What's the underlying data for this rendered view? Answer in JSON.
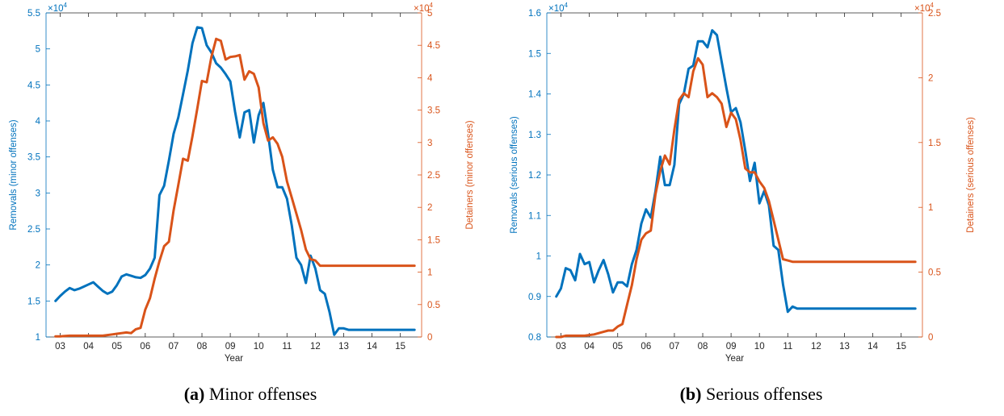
{
  "figures": [
    {
      "caption_tag": "(a)",
      "caption_text": "Minor offenses"
    },
    {
      "caption_tag": "(b)",
      "caption_text": "Serious offenses"
    }
  ],
  "colors": {
    "removals": "#0072BD",
    "detainers": "#D95319"
  },
  "chart_data": [
    {
      "type": "line",
      "xlabel": "Year",
      "ylabel_left": "Removals (minor offenses)",
      "ylabel_right": "Detainers (minor offenses)",
      "exponent_left": "×10",
      "exponent_right": "×10",
      "exponent_power": "4",
      "x_ticks": [
        3,
        4,
        5,
        6,
        7,
        8,
        9,
        10,
        11,
        12,
        13,
        14,
        15
      ],
      "x_tick_labels": [
        "03",
        "04",
        "05",
        "06",
        "07",
        "08",
        "09",
        "10",
        "11",
        "12",
        "13",
        "14",
        "15"
      ],
      "xlim": [
        2.5,
        15.75
      ],
      "ylim_left": [
        1,
        5.5
      ],
      "ylim_right": [
        0,
        5
      ],
      "y_ticks_left": [
        1,
        1.5,
        2,
        2.5,
        3,
        3.5,
        4,
        4.5,
        5,
        5.5
      ],
      "y_tick_labels_left": [
        "1",
        "1.5",
        "2",
        "2.5",
        "3",
        "3.5",
        "4",
        "4.5",
        "5",
        "5.5"
      ],
      "y_ticks_right": [
        0,
        0.5,
        1,
        1.5,
        2,
        2.5,
        3,
        3.5,
        4,
        4.5,
        5
      ],
      "y_tick_labels_right": [
        "0",
        "0.5",
        "1",
        "1.5",
        "2",
        "2.5",
        "3",
        "3.5",
        "4",
        "4.5",
        "5"
      ],
      "x": [
        2.833,
        3.0,
        3.167,
        3.333,
        3.5,
        3.667,
        3.833,
        4.0,
        4.167,
        4.333,
        4.5,
        4.667,
        4.833,
        5.0,
        5.167,
        5.333,
        5.5,
        5.667,
        5.833,
        6.0,
        6.167,
        6.333,
        6.5,
        6.667,
        6.833,
        7.0,
        7.167,
        7.333,
        7.5,
        7.667,
        7.833,
        8.0,
        8.167,
        8.333,
        8.5,
        8.667,
        8.833,
        9.0,
        9.167,
        9.333,
        9.5,
        9.667,
        9.833,
        10.0,
        10.167,
        10.333,
        10.5,
        10.667,
        10.833,
        11.0,
        11.167,
        11.333,
        11.5,
        11.667,
        11.833,
        12.0,
        12.167,
        12.333,
        12.5,
        12.667,
        12.833,
        13.0,
        13.167,
        13.333,
        13.5,
        13.667,
        13.833,
        14.0,
        14.167,
        14.333,
        14.5,
        14.667,
        14.833,
        15.0,
        15.167,
        15.333,
        15.5
      ],
      "series": [
        {
          "axis": "left",
          "values": [
            1.5,
            1.57,
            1.63,
            1.68,
            1.65,
            1.67,
            1.7,
            1.73,
            1.76,
            1.7,
            1.64,
            1.6,
            1.63,
            1.72,
            1.84,
            1.87,
            1.85,
            1.83,
            1.82,
            1.86,
            1.95,
            2.1,
            2.97,
            3.1,
            3.45,
            3.82,
            4.05,
            4.37,
            4.7,
            5.08,
            5.3,
            5.29,
            5.05,
            4.95,
            4.8,
            4.74,
            4.65,
            4.55,
            4.13,
            3.77,
            4.12,
            4.15,
            3.7,
            4.08,
            4.25,
            3.82,
            3.32,
            3.08,
            3.08,
            2.92,
            2.55,
            2.1,
            2.0,
            1.75,
            2.13,
            1.95,
            1.65,
            1.6,
            1.35,
            1.03,
            1.12,
            1.12,
            1.1,
            1.1,
            1.1,
            1.1,
            1.1,
            1.1,
            1.1,
            1.1,
            1.1,
            1.1,
            1.1,
            1.1,
            1.1,
            1.1,
            1.1
          ]
        },
        {
          "axis": "right",
          "values": [
            0.01,
            0.01,
            0.015,
            0.02,
            0.02,
            0.02,
            0.02,
            0.02,
            0.02,
            0.02,
            0.02,
            0.03,
            0.04,
            0.05,
            0.06,
            0.07,
            0.06,
            0.12,
            0.14,
            0.42,
            0.6,
            0.9,
            1.17,
            1.4,
            1.47,
            1.95,
            2.35,
            2.75,
            2.72,
            3.1,
            3.52,
            3.95,
            3.93,
            4.32,
            4.6,
            4.57,
            4.28,
            4.32,
            4.33,
            4.35,
            3.97,
            4.1,
            4.06,
            3.85,
            3.3,
            3.03,
            3.08,
            2.98,
            2.78,
            2.4,
            2.15,
            1.9,
            1.65,
            1.35,
            1.2,
            1.18,
            1.1,
            1.1,
            1.1,
            1.1,
            1.1,
            1.1,
            1.1,
            1.1,
            1.1,
            1.1,
            1.1,
            1.1,
            1.1,
            1.1,
            1.1,
            1.1,
            1.1,
            1.1,
            1.1,
            1.1,
            1.1
          ]
        }
      ]
    },
    {
      "type": "line",
      "xlabel": "Year",
      "ylabel_left": "Removals (serious offenses)",
      "ylabel_right": "Detainers (serious offenses)",
      "exponent_left": "×10",
      "exponent_right": "×10",
      "exponent_power": "4",
      "x_ticks": [
        3,
        4,
        5,
        6,
        7,
        8,
        9,
        10,
        11,
        12,
        13,
        14,
        15
      ],
      "x_tick_labels": [
        "03",
        "04",
        "05",
        "06",
        "07",
        "08",
        "09",
        "10",
        "11",
        "12",
        "13",
        "14",
        "15"
      ],
      "xlim": [
        2.5,
        15.75
      ],
      "ylim_left": [
        0.8,
        1.6
      ],
      "ylim_right": [
        0,
        2.5
      ],
      "y_ticks_left": [
        0.8,
        0.9,
        1.0,
        1.1,
        1.2,
        1.3,
        1.4,
        1.5,
        1.6
      ],
      "y_tick_labels_left": [
        "0.8",
        "0.9",
        "1",
        "1.1",
        "1.2",
        "1.3",
        "1.4",
        "1.5",
        "1.6"
      ],
      "y_ticks_right": [
        0,
        0.5,
        1,
        1.5,
        2,
        2.5
      ],
      "y_tick_labels_right": [
        "0",
        "0.5",
        "1",
        "1.5",
        "2",
        "2.5"
      ],
      "x": [
        2.833,
        3.0,
        3.167,
        3.333,
        3.5,
        3.667,
        3.833,
        4.0,
        4.167,
        4.333,
        4.5,
        4.667,
        4.833,
        5.0,
        5.167,
        5.333,
        5.5,
        5.667,
        5.833,
        6.0,
        6.167,
        6.333,
        6.5,
        6.667,
        6.833,
        7.0,
        7.167,
        7.333,
        7.5,
        7.667,
        7.833,
        8.0,
        8.167,
        8.333,
        8.5,
        8.667,
        8.833,
        9.0,
        9.167,
        9.333,
        9.5,
        9.667,
        9.833,
        10.0,
        10.167,
        10.333,
        10.5,
        10.667,
        10.833,
        11.0,
        11.167,
        11.333,
        11.5,
        11.667,
        11.833,
        12.0,
        12.167,
        12.333,
        12.5,
        12.667,
        12.833,
        13.0,
        13.167,
        13.333,
        13.5,
        13.667,
        13.833,
        14.0,
        14.167,
        14.333,
        14.5,
        14.667,
        14.833,
        15.0,
        15.167,
        15.333,
        15.5
      ],
      "series": [
        {
          "axis": "left",
          "values": [
            0.9,
            0.92,
            0.97,
            0.965,
            0.94,
            1.005,
            0.98,
            0.985,
            0.935,
            0.965,
            0.99,
            0.955,
            0.91,
            0.935,
            0.935,
            0.925,
            0.98,
            1.015,
            1.08,
            1.115,
            1.095,
            1.16,
            1.245,
            1.175,
            1.175,
            1.225,
            1.375,
            1.4,
            1.462,
            1.47,
            1.53,
            1.53,
            1.515,
            1.557,
            1.545,
            1.48,
            1.415,
            1.355,
            1.365,
            1.33,
            1.26,
            1.185,
            1.23,
            1.13,
            1.16,
            1.125,
            1.025,
            1.015,
            0.93,
            0.862,
            0.875,
            0.87,
            0.87,
            0.87,
            0.87,
            0.87,
            0.87,
            0.87,
            0.87,
            0.87,
            0.87,
            0.87,
            0.87,
            0.87,
            0.87,
            0.87,
            0.87,
            0.87,
            0.87,
            0.87,
            0.87,
            0.87,
            0.87,
            0.87,
            0.87,
            0.87,
            0.87
          ]
        },
        {
          "axis": "right",
          "values": [
            0.0,
            0.0,
            0.01,
            0.01,
            0.01,
            0.01,
            0.01,
            0.015,
            0.02,
            0.03,
            0.04,
            0.05,
            0.05,
            0.08,
            0.1,
            0.25,
            0.4,
            0.6,
            0.75,
            0.8,
            0.82,
            1.1,
            1.28,
            1.4,
            1.33,
            1.6,
            1.83,
            1.88,
            1.85,
            2.05,
            2.15,
            2.1,
            1.85,
            1.88,
            1.85,
            1.8,
            1.62,
            1.73,
            1.68,
            1.52,
            1.3,
            1.27,
            1.27,
            1.2,
            1.15,
            1.05,
            0.9,
            0.75,
            0.6,
            0.59,
            0.58,
            0.58,
            0.58,
            0.58,
            0.58,
            0.58,
            0.58,
            0.58,
            0.58,
            0.58,
            0.58,
            0.58,
            0.58,
            0.58,
            0.58,
            0.58,
            0.58,
            0.58,
            0.58,
            0.58,
            0.58,
            0.58,
            0.58,
            0.58,
            0.58,
            0.58,
            0.58
          ]
        }
      ]
    }
  ]
}
